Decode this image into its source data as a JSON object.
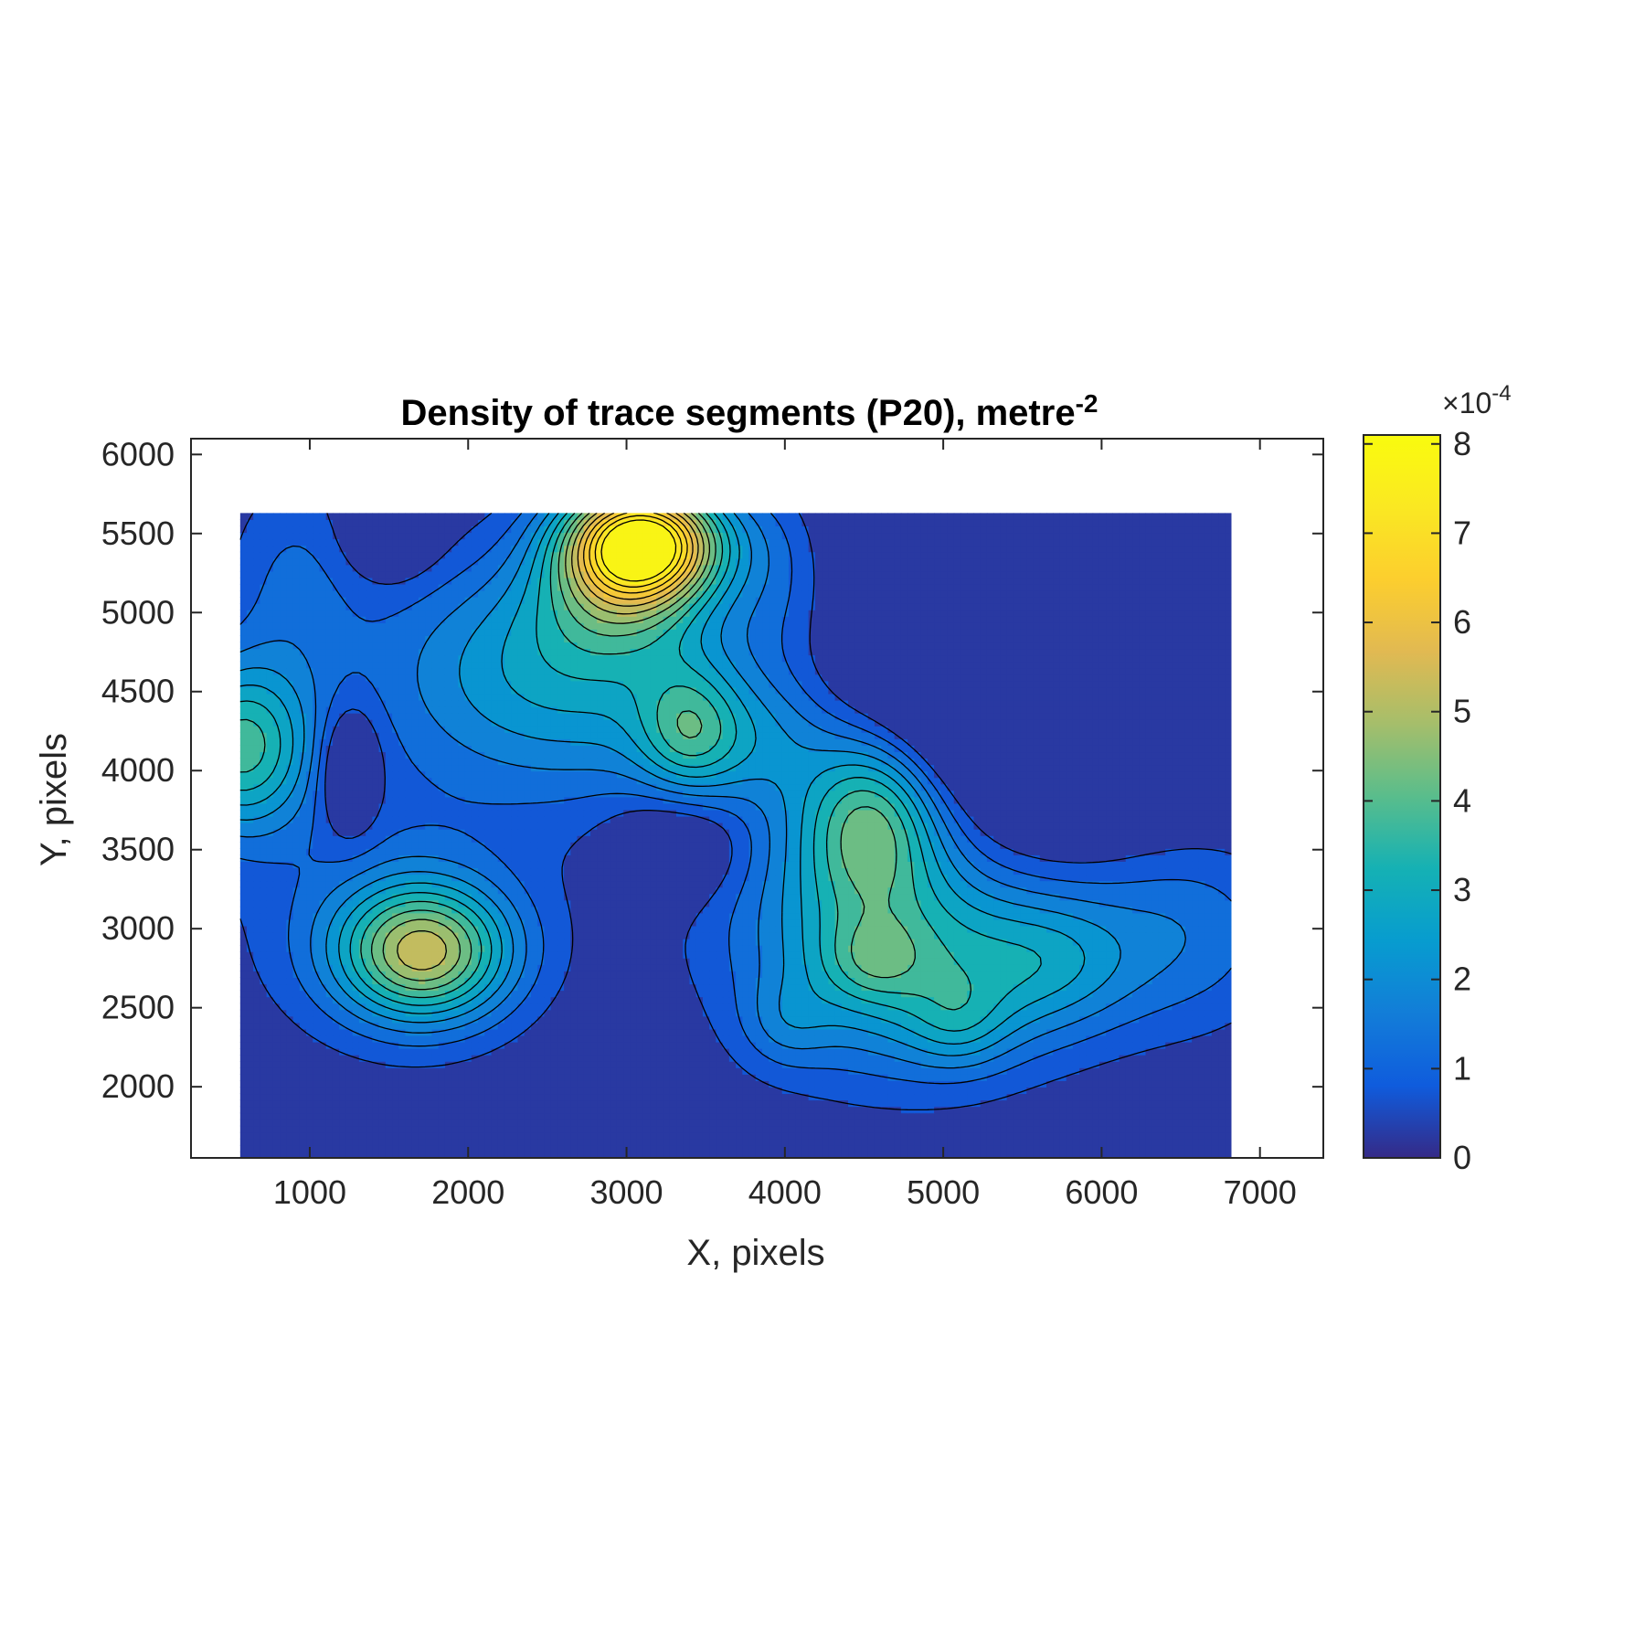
{
  "chart_data": {
    "type": "heatmap",
    "subtype": "filled-contour",
    "title": "Density of trace segments (P20), metre",
    "title_superscript": "-2",
    "xlabel": "X, pixels",
    "ylabel": "Y, pixels",
    "xlim": [
      250,
      7400
    ],
    "ylim": [
      1550,
      6100
    ],
    "x_ticks": [
      1000,
      2000,
      3000,
      4000,
      5000,
      6000,
      7000
    ],
    "y_ticks": [
      2000,
      2500,
      3000,
      3500,
      4000,
      4500,
      5000,
      5500,
      6000
    ],
    "data_extent": {
      "x": [
        560,
        6820
      ],
      "y": [
        1550,
        5630
      ]
    },
    "colorbar": {
      "range": [
        0,
        8.1
      ],
      "ticks": [
        0,
        1,
        2,
        3,
        4,
        5,
        6,
        7,
        8
      ],
      "multiplier_prefix": "×10",
      "multiplier_exponent": "-4",
      "colormap": "parula"
    },
    "contour_levels": [
      0.5,
      1,
      1.5,
      2,
      2.5,
      3,
      3.5,
      4,
      4.5,
      5,
      5.5,
      6,
      6.5,
      7,
      7.5
    ],
    "peaks": [
      {
        "x": 3100,
        "y": 5450,
        "value": 8.0,
        "sx": 350,
        "sy": 260
      },
      {
        "x": 2950,
        "y": 5050,
        "value": 2.0,
        "sx": 420,
        "sy": 300
      },
      {
        "x": 3400,
        "y": 4250,
        "value": 2.3,
        "sx": 230,
        "sy": 300
      },
      {
        "x": 3000,
        "y": 4450,
        "value": 1.6,
        "sx": 800,
        "sy": 500
      },
      {
        "x": 2200,
        "y": 4700,
        "value": 1.4,
        "sx": 700,
        "sy": 500
      },
      {
        "x": 3900,
        "y": 4200,
        "value": 1.0,
        "sx": 300,
        "sy": 280
      },
      {
        "x": 560,
        "y": 4150,
        "value": 3.6,
        "sx": 320,
        "sy": 380
      },
      {
        "x": 1720,
        "y": 2850,
        "value": 4.5,
        "sx": 380,
        "sy": 300
      },
      {
        "x": 1500,
        "y": 3100,
        "value": 1.0,
        "sx": 700,
        "sy": 600
      },
      {
        "x": 4550,
        "y": 3700,
        "value": 3.0,
        "sx": 300,
        "sy": 380
      },
      {
        "x": 4450,
        "y": 3300,
        "value": 2.0,
        "sx": 650,
        "sy": 700
      },
      {
        "x": 4550,
        "y": 2800,
        "value": 1.0,
        "sx": 220,
        "sy": 180
      },
      {
        "x": 5000,
        "y": 2750,
        "value": 2.2,
        "sx": 650,
        "sy": 450
      },
      {
        "x": 5700,
        "y": 2800,
        "value": 1.2,
        "sx": 350,
        "sy": 300
      },
      {
        "x": 4000,
        "y": 2400,
        "value": 0.8,
        "sx": 200,
        "sy": 200
      },
      {
        "x": 5100,
        "y": 2400,
        "value": 1.0,
        "sx": 220,
        "sy": 200
      },
      {
        "x": 6500,
        "y": 3000,
        "value": 1.4,
        "sx": 500,
        "sy": 450
      },
      {
        "x": 4000,
        "y": 5300,
        "value": 1.5,
        "sx": 300,
        "sy": 500
      },
      {
        "x": 4600,
        "y": 5100,
        "value": 0.9,
        "sx": 300,
        "sy": 500
      },
      {
        "x": 900,
        "y": 5200,
        "value": 1.0,
        "sx": 300,
        "sy": 500
      }
    ],
    "valleys": [
      {
        "x": 1250,
        "y": 4000,
        "value": 1.6,
        "sx": 130,
        "sy": 280
      },
      {
        "x": 3350,
        "y": 3550,
        "value": 1.2,
        "sx": 300,
        "sy": 250
      },
      {
        "x": 5300,
        "y": 5000,
        "value": 3.0,
        "sx": 900,
        "sy": 900
      },
      {
        "x": 1500,
        "y": 5500,
        "value": 1.0,
        "sx": 200,
        "sy": 200
      }
    ],
    "colors": {
      "frame": "#262626",
      "contour_line": "#000000"
    }
  }
}
